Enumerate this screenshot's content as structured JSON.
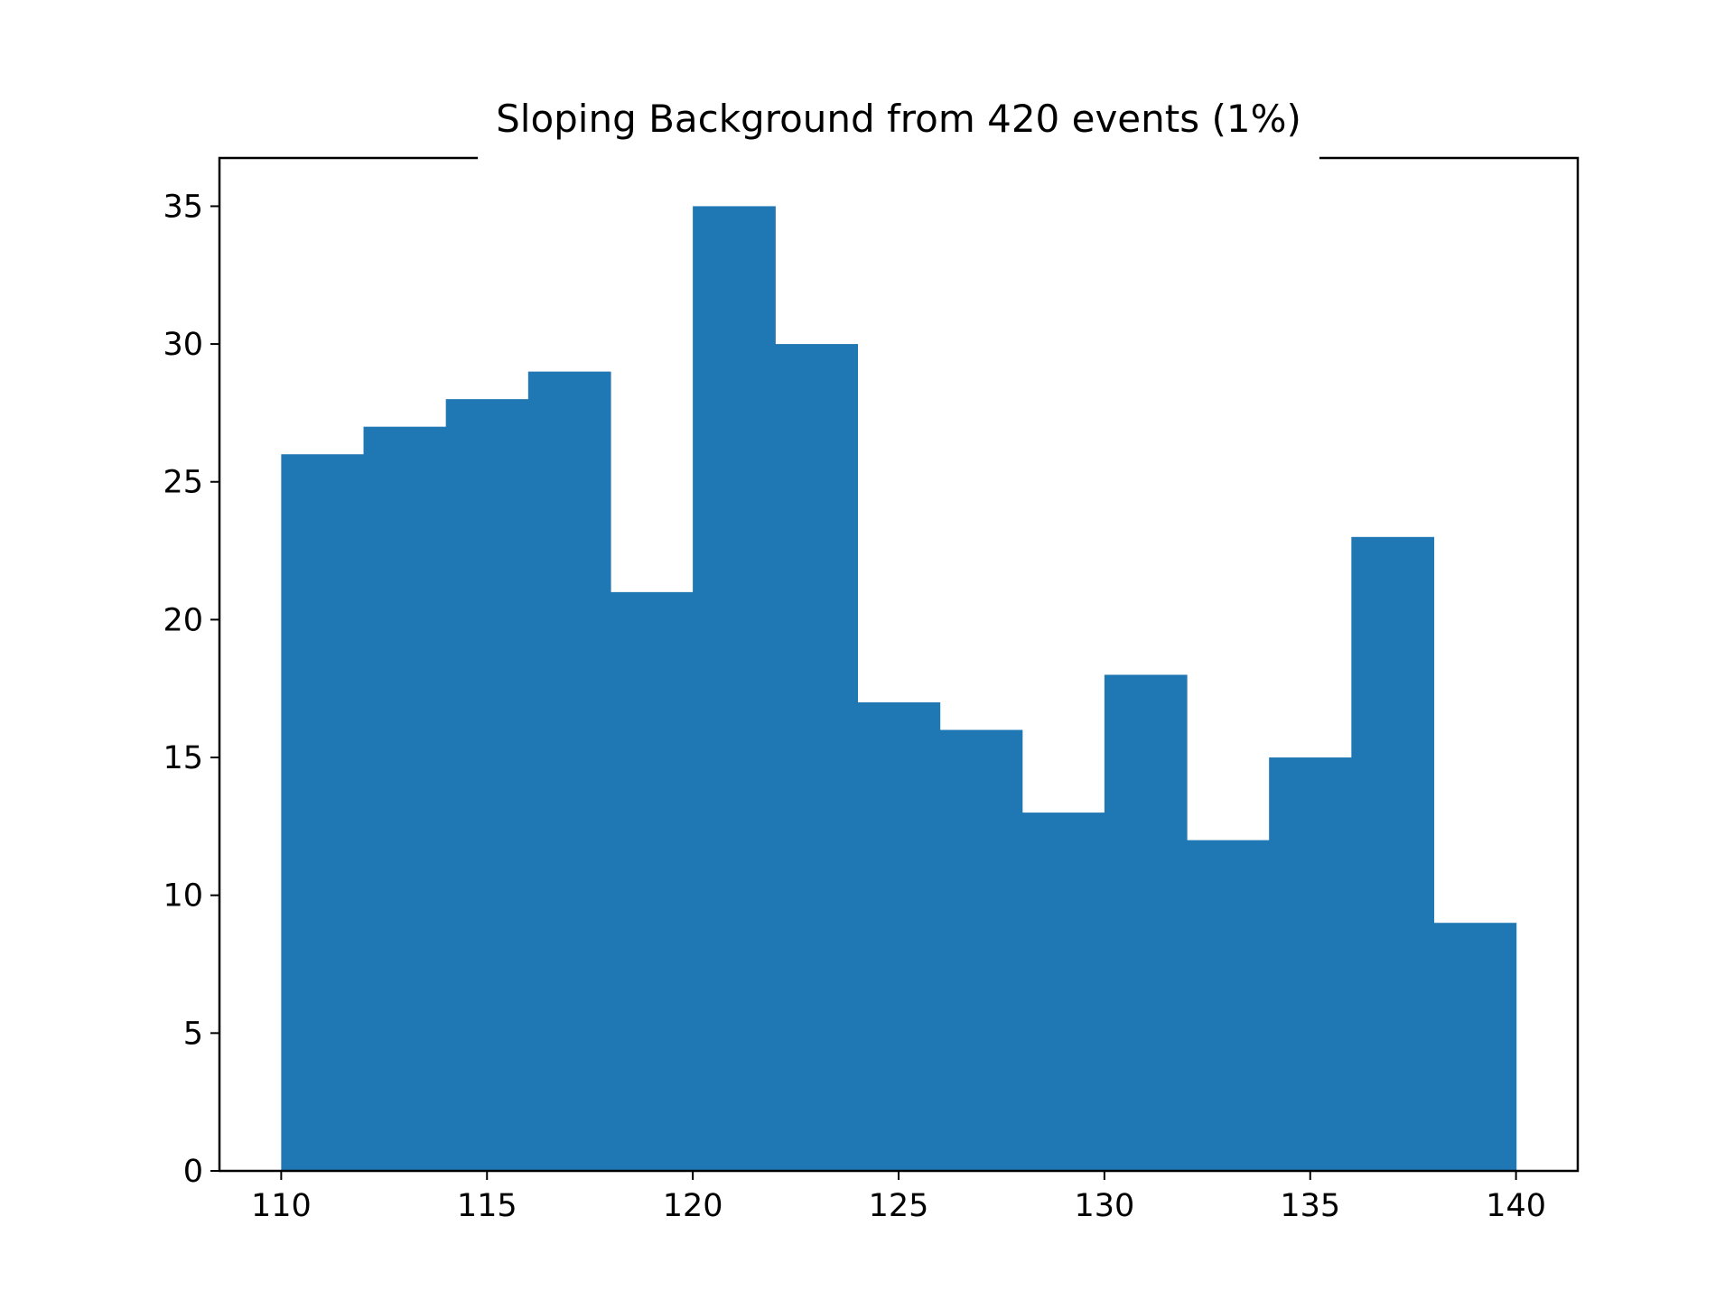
{
  "chart_data": {
    "type": "bar",
    "title": "Sloping Background from 420 events (1%)",
    "xlabel": "",
    "ylabel": "",
    "xlim": [
      108.5,
      141.5
    ],
    "ylim": [
      0,
      36.75
    ],
    "bins": [
      {
        "x0": 110,
        "x1": 112,
        "count": 26
      },
      {
        "x0": 112,
        "x1": 114,
        "count": 27
      },
      {
        "x0": 114,
        "x1": 116,
        "count": 28
      },
      {
        "x0": 116,
        "x1": 118,
        "count": 29
      },
      {
        "x0": 118,
        "x1": 120,
        "count": 21
      },
      {
        "x0": 120,
        "x1": 122,
        "count": 35
      },
      {
        "x0": 122,
        "x1": 124,
        "count": 30
      },
      {
        "x0": 124,
        "x1": 126,
        "count": 17
      },
      {
        "x0": 126,
        "x1": 128,
        "count": 16
      },
      {
        "x0": 128,
        "x1": 130,
        "count": 13
      },
      {
        "x0": 130,
        "x1": 132,
        "count": 18
      },
      {
        "x0": 132,
        "x1": 134,
        "count": 12
      },
      {
        "x0": 134,
        "x1": 136,
        "count": 15
      },
      {
        "x0": 136,
        "x1": 138,
        "count": 23
      },
      {
        "x0": 138,
        "x1": 140,
        "count": 9
      }
    ],
    "x_ticks": [
      110,
      115,
      120,
      125,
      130,
      135,
      140
    ],
    "x_tick_labels": [
      "110",
      "115",
      "120",
      "125",
      "130",
      "135",
      "140"
    ],
    "y_ticks": [
      0,
      5,
      10,
      15,
      20,
      25,
      30,
      35
    ],
    "y_tick_labels": [
      "0",
      "5",
      "10",
      "15",
      "20",
      "25",
      "30",
      "35"
    ],
    "grid": false,
    "legend": "none",
    "bar_color": "#1f77b4"
  }
}
